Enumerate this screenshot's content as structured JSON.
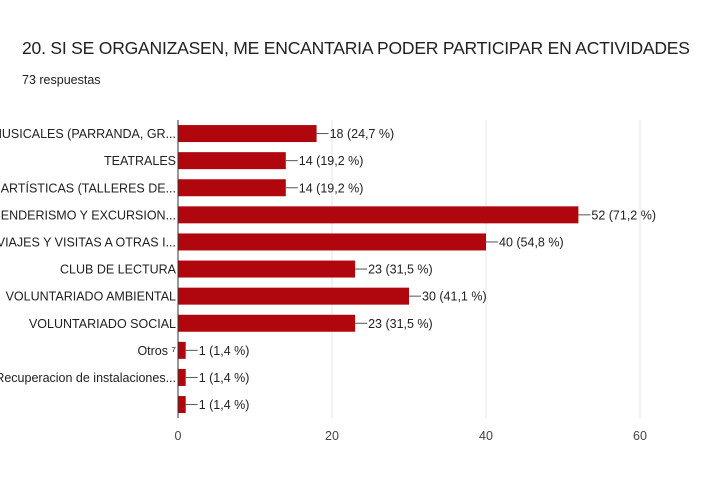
{
  "header": {
    "title": "20. SI SE ORGANIZASEN, ME ENCANTARIA PODER PARTICIPAR EN ACTIVIDADES",
    "responses": "73 respuestas"
  },
  "chart_data": {
    "type": "bar",
    "orientation": "horizontal",
    "categories": [
      "MUSICALES (PARRANDA, GR...",
      "TEATRALES",
      "ARTÍSTICAS (TALLERES DE...",
      "SENDERISMO Y EXCURSION...",
      "VIAJES Y VISITAS A OTRAS I...",
      "CLUB DE LECTURA",
      "VOLUNTARIADO AMBIENTAL",
      "VOLUNTARIADO SOCIAL",
      "Otros ⁷",
      "Recuperacion de instalaciones...",
      ""
    ],
    "values": [
      18,
      14,
      14,
      52,
      40,
      23,
      30,
      23,
      1,
      1,
      1
    ],
    "data_labels": [
      "18 (24,7 %)",
      "14 (19,2 %)",
      "14 (19,2 %)",
      "52 (71,2 %)",
      "40 (54,8 %)",
      "23 (31,5 %)",
      "30 (41,1 %)",
      "23 (31,5 %)",
      "1 (1,4 %)",
      "1 (1,4 %)",
      "1 (1,4 %)"
    ],
    "xlim": [
      0,
      60
    ],
    "xticks": [
      0,
      20,
      40,
      60
    ],
    "grid": true,
    "bar_color": "#b0070e",
    "title": "20. SI SE ORGANIZASEN, ME ENCANTARIA PODER PARTICIPAR EN ACTIVIDADES",
    "xlabel": "",
    "ylabel": ""
  }
}
